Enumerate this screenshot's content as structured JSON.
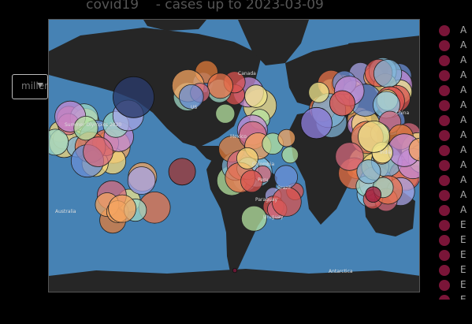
{
  "title": "covid19    - cases up to 2023-03-09",
  "projection_select": {
    "value": "miller"
  },
  "map": {
    "ocean_color": "#4682b4",
    "land_color": "#262626",
    "labels": [
      "US",
      "Brazil",
      "Summer Olympics 2020",
      "Australia",
      "Antarctica",
      "Uruguay",
      "Paraguay",
      "Peru",
      "Colombia",
      "Mexico",
      "Canada",
      "China",
      "India"
    ]
  },
  "legend": {
    "marker_color": "#7a1538",
    "items": [
      "A",
      "A",
      "A",
      "A",
      "A",
      "A",
      "A",
      "A",
      "A",
      "A",
      "A",
      "A",
      "A",
      "E",
      "E",
      "E",
      "E",
      "E",
      "E"
    ]
  },
  "chart_data": {
    "type": "scatter",
    "subtype": "bubble map",
    "title": "covid19    - cases up to 2023-03-09",
    "projection": "miller",
    "series": [
      {
        "name": "US",
        "lon": -98,
        "lat": 39,
        "size": 1
      },
      {
        "name": "Brazil",
        "lon": -51,
        "lat": -10,
        "size": 0.85
      },
      {
        "name": "India",
        "lon": 79,
        "lat": 22,
        "size": 0.9
      },
      {
        "name": "China",
        "lon": 104,
        "lat": 35,
        "size": 0.8
      },
      {
        "name": "Australia",
        "lon": 134,
        "lat": -25,
        "size": 0.55
      },
      {
        "name": "Antarctica",
        "lon": 0,
        "lat": -75,
        "size": 0.1
      }
    ]
  }
}
